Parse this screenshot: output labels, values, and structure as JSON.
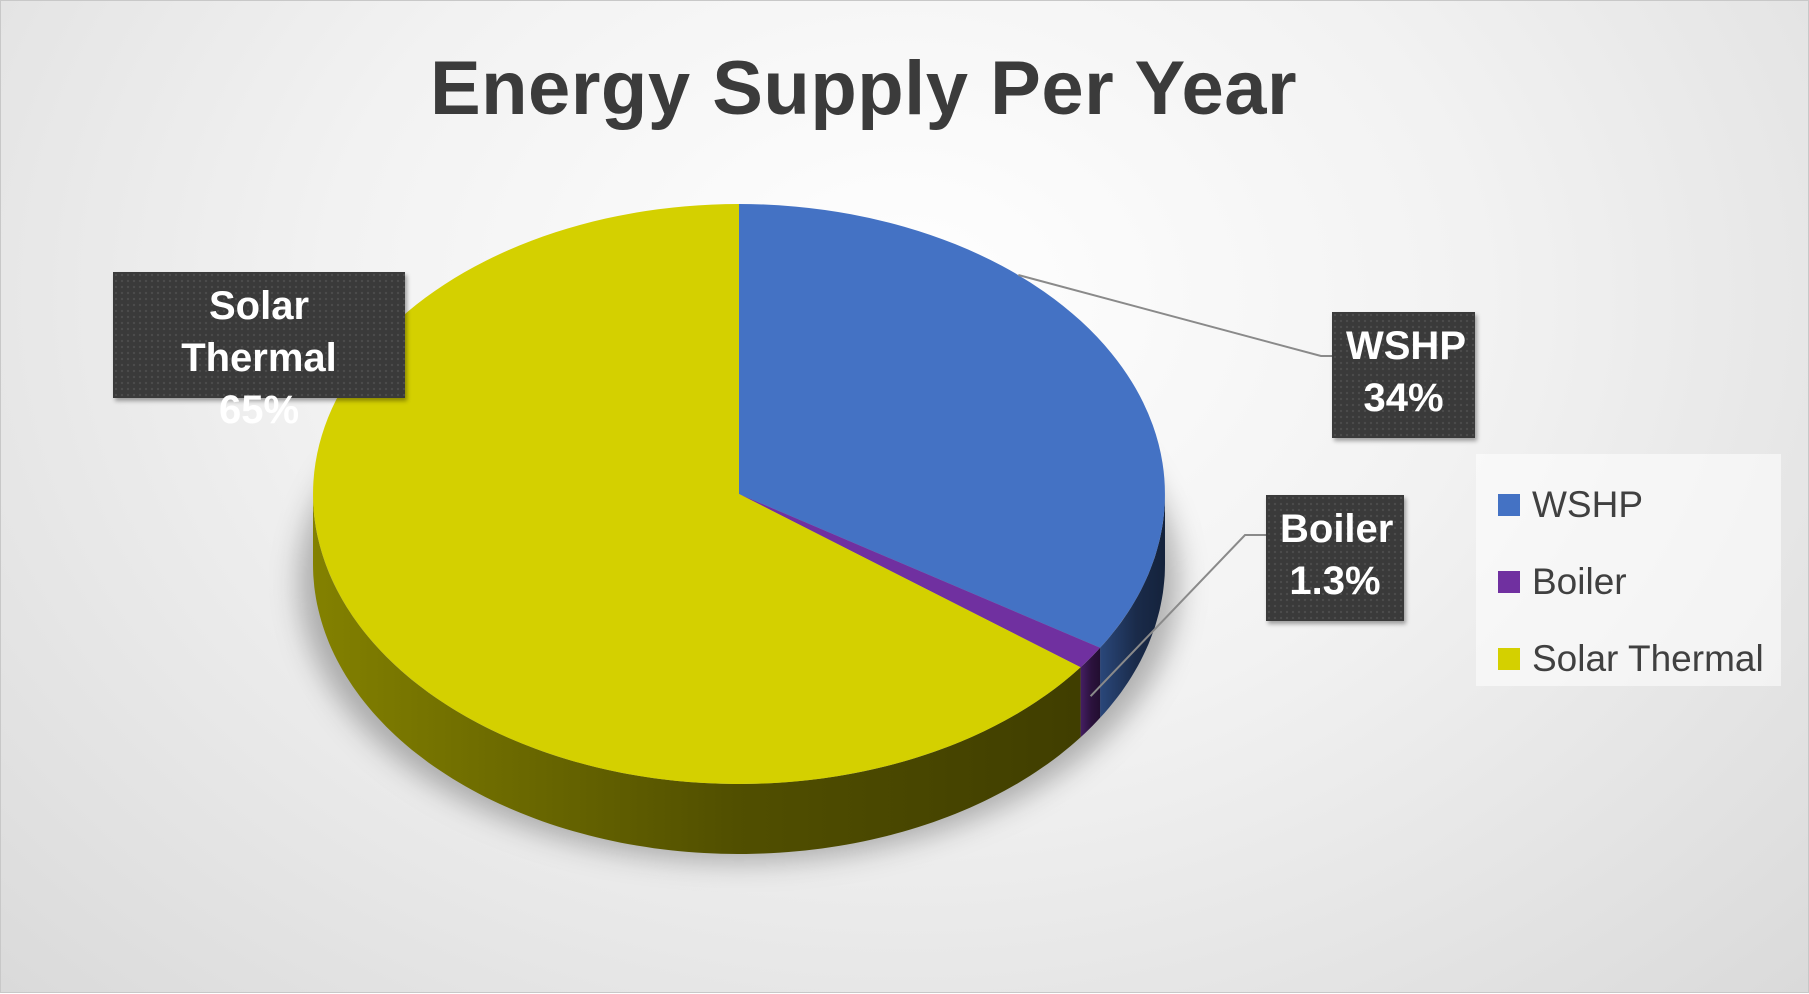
{
  "chart_data": {
    "type": "pie",
    "title": "Energy Supply Per Year",
    "slices": [
      {
        "name": "WSHP",
        "value": 34,
        "label": "34%",
        "color": "#4472c4"
      },
      {
        "name": "Boiler",
        "value": 1.3,
        "label": "1.3%",
        "color": "#7030a0"
      },
      {
        "name": "Solar Thermal",
        "value": 65,
        "label": "65%",
        "color": "#d4d000"
      }
    ],
    "legend": {
      "position": "right",
      "items": [
        "WSHP",
        "Boiler",
        "Solar Thermal"
      ]
    },
    "style": "3d",
    "background": "#eeeeee",
    "label_box_color": "#3a3a3a"
  }
}
